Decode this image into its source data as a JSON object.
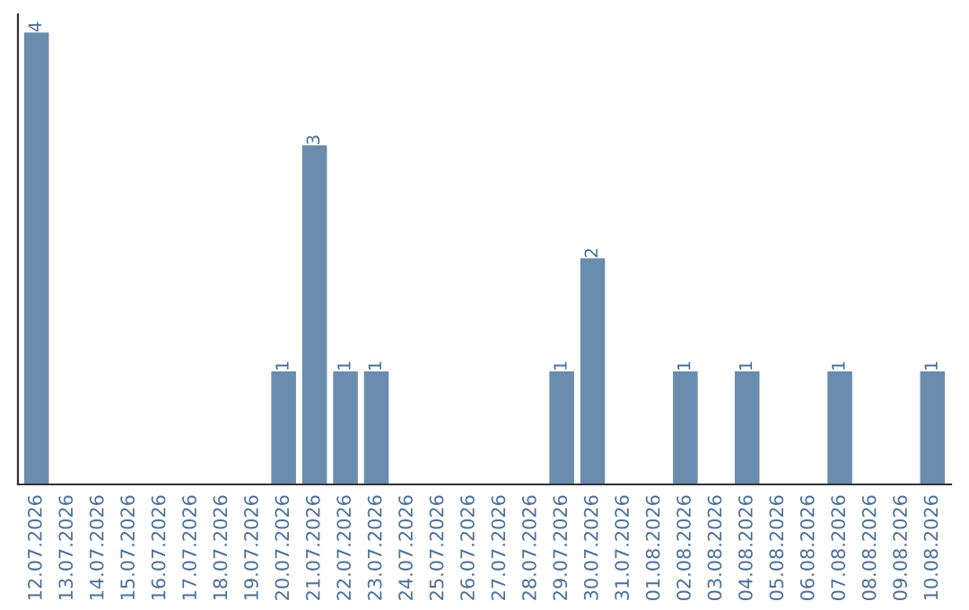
{
  "chart_data": {
    "type": "bar",
    "categories": [
      "12.07.2026",
      "13.07.2026",
      "14.07.2026",
      "15.07.2026",
      "16.07.2026",
      "17.07.2026",
      "18.07.2026",
      "19.07.2026",
      "20.07.2026",
      "21.07.2026",
      "22.07.2026",
      "23.07.2026",
      "24.07.2026",
      "25.07.2026",
      "26.07.2026",
      "27.07.2026",
      "28.07.2026",
      "29.07.2026",
      "30.07.2026",
      "31.07.2026",
      "01.08.2026",
      "02.08.2026",
      "03.08.2026",
      "04.08.2026",
      "05.08.2026",
      "06.08.2026",
      "07.08.2026",
      "08.08.2026",
      "09.08.2026",
      "10.08.2026"
    ],
    "values": [
      4,
      0,
      0,
      0,
      0,
      0,
      0,
      0,
      1,
      3,
      1,
      1,
      0,
      0,
      0,
      0,
      0,
      1,
      2,
      0,
      0,
      1,
      0,
      1,
      0,
      0,
      1,
      0,
      0,
      1
    ],
    "value_labels": [
      "4",
      null,
      null,
      null,
      null,
      null,
      null,
      null,
      "1",
      "3",
      "1",
      "1",
      null,
      null,
      null,
      null,
      null,
      "1",
      "2",
      null,
      null,
      "1",
      null,
      "1",
      null,
      null,
      "1",
      null,
      null,
      "1"
    ],
    "color": "#6a8caf",
    "grid": false
  }
}
